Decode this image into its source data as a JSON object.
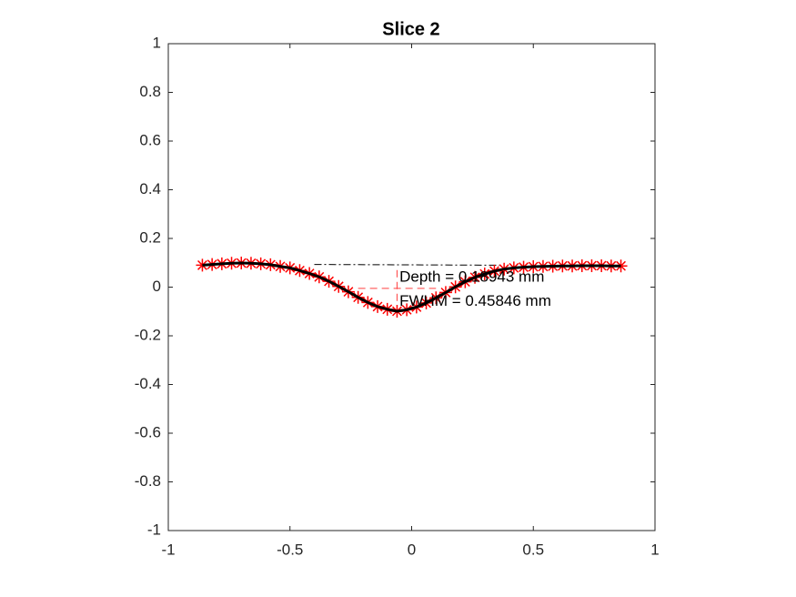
{
  "chart_data": {
    "type": "line",
    "title": "Slice 2",
    "x": [
      -0.86,
      -0.82,
      -0.78,
      -0.74,
      -0.7,
      -0.66,
      -0.62,
      -0.58,
      -0.54,
      -0.5,
      -0.46,
      -0.42,
      -0.38,
      -0.34,
      -0.3,
      -0.26,
      -0.22,
      -0.18,
      -0.14,
      -0.1,
      -0.06,
      -0.02,
      0.02,
      0.06,
      0.1,
      0.14,
      0.18,
      0.22,
      0.26,
      0.3,
      0.34,
      0.38,
      0.42,
      0.46,
      0.5,
      0.54,
      0.58,
      0.62,
      0.66,
      0.7,
      0.74,
      0.78,
      0.82,
      0.86
    ],
    "series": [
      {
        "color": "#ff0000",
        "style": "marker",
        "values": [
          0.09,
          0.093,
          0.096,
          0.098,
          0.099,
          0.098,
          0.096,
          0.092,
          0.085,
          0.079,
          0.068,
          0.056,
          0.042,
          0.024,
          0.003,
          -0.019,
          -0.042,
          -0.063,
          -0.08,
          -0.091,
          -0.099,
          -0.093,
          -0.082,
          -0.065,
          -0.044,
          -0.022,
          0.001,
          0.022,
          0.04,
          0.054,
          0.066,
          0.074,
          0.079,
          0.082,
          0.084,
          0.085,
          0.086,
          0.087,
          0.087,
          0.088,
          0.088,
          0.088,
          0.087,
          0.087
        ]
      },
      {
        "color": "#000000",
        "style": "line",
        "values": [
          0.09,
          0.093,
          0.096,
          0.098,
          0.099,
          0.098,
          0.096,
          0.092,
          0.085,
          0.079,
          0.068,
          0.056,
          0.042,
          0.024,
          0.003,
          -0.019,
          -0.042,
          -0.063,
          -0.08,
          -0.091,
          -0.099,
          -0.093,
          -0.082,
          -0.065,
          -0.044,
          -0.022,
          0.001,
          0.022,
          0.04,
          0.054,
          0.066,
          0.074,
          0.079,
          0.082,
          0.084,
          0.085,
          0.086,
          0.087,
          0.087,
          0.088,
          0.088,
          0.088,
          0.087,
          0.087
        ]
      }
    ],
    "reference_lines": [
      {
        "x": [
          -0.4,
          0.38
        ],
        "y": [
          0.093,
          0.09
        ],
        "color": "#000000",
        "dash": "8 3 2 3"
      },
      {
        "x": [
          -0.22,
          0.1
        ],
        "y": [
          -0.005,
          -0.005
        ],
        "color": "#ff4040",
        "dash": "8 5"
      },
      {
        "x": [
          -0.06,
          -0.06
        ],
        "y": [
          0.07,
          -0.1
        ],
        "color": "#ff4040",
        "dash": "8 5"
      }
    ],
    "annotations": [
      {
        "text": "Depth = 0.18943 mm",
        "x": -0.05,
        "y": 0.04
      },
      {
        "text": "FWHM = 0.45846 mm",
        "x": -0.05,
        "y": -0.06
      }
    ],
    "xlim": [
      -1,
      1
    ],
    "ylim": [
      -1,
      1
    ],
    "xticks": [
      -1,
      -0.5,
      0,
      0.5,
      1
    ],
    "yticks": [
      -1,
      -0.8,
      -0.6,
      -0.4,
      -0.2,
      0,
      0.2,
      0.4,
      0.6,
      0.8,
      1
    ],
    "grid": false
  }
}
